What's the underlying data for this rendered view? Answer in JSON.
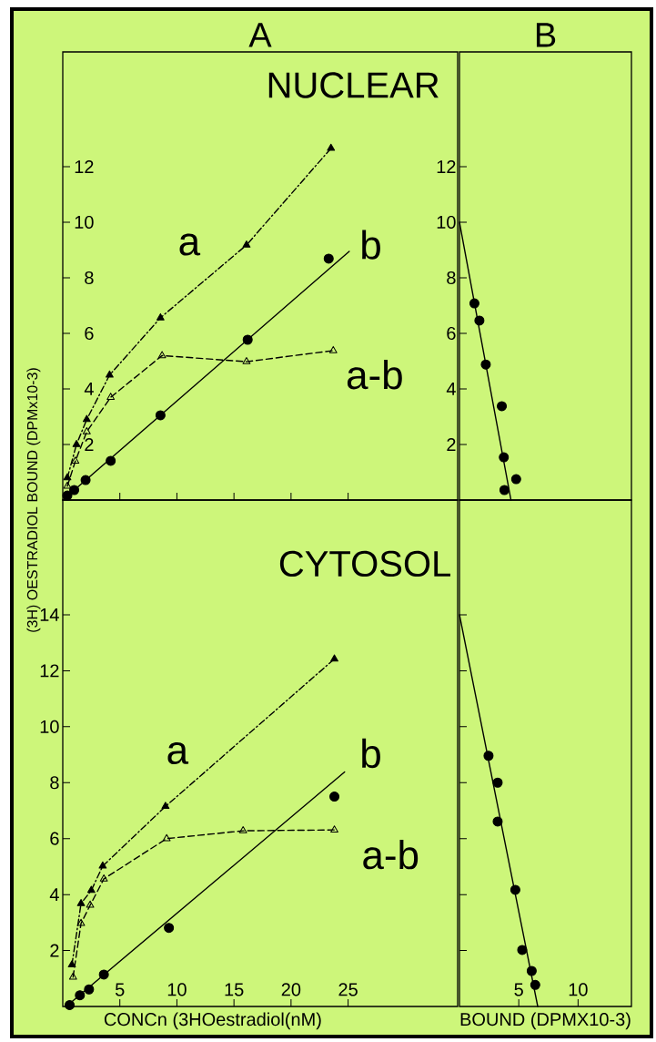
{
  "chart_data": [
    {
      "type": "scatter",
      "title": "A",
      "subtitle": "NUCLEAR",
      "xlim": [
        0,
        34.6
      ],
      "ylim": [
        0,
        16.13
      ],
      "xticks": [
        {
          "value": 5,
          "label": null
        },
        {
          "value": 10,
          "label": null
        },
        {
          "value": 15,
          "label": null
        },
        {
          "value": 20,
          "label": null
        },
        {
          "value": 25,
          "label": null
        }
      ],
      "yticks": [
        2,
        4,
        6,
        8,
        10,
        12
      ],
      "tick_labels": "y",
      "annotations": [
        "a",
        "b",
        "a-b"
      ],
      "series": [
        {
          "type": "line",
          "color": "#000000",
          "marker": "triangle",
          "line_style": "dashdotted",
          "x": [
            0.4,
            1.2,
            2.1,
            4.1,
            8.56,
            16.1,
            23.5
          ],
          "values": [
            0.8,
            2.0,
            2.9,
            4.5,
            6.56,
            9.18,
            12.66
          ]
        },
        {
          "type": "line",
          "color": "#000000",
          "marker": "triangle",
          "line_style": "dashed",
          "x": [
            0.4,
            1.1,
            2.1,
            4.2,
            8.7,
            16.1,
            23.7
          ],
          "values": [
            0.5,
            1.4,
            2.46,
            3.7,
            5.2,
            4.98,
            5.38
          ]
        },
        {
          "color": "#000000",
          "marker": "circle",
          "x": [
            0.4,
            1.0,
            2.0,
            4.2,
            8.56,
            16.2,
            23.3
          ],
          "values": [
            0.16,
            0.36,
            0.72,
            1.41,
            3.05,
            5.77,
            8.69
          ]
        },
        {
          "type": "line",
          "color": "#000000",
          "marker": "none",
          "line_style": "solid",
          "x": [
            0,
            25.1
          ],
          "values": [
            0,
            8.95
          ]
        }
      ]
    },
    {
      "type": "scatter",
      "title": "B",
      "xlim": [
        0,
        14.5
      ],
      "ylim": [
        0,
        16.13
      ],
      "yticks": [
        2,
        4,
        6,
        8,
        10,
        12
      ],
      "tick_labels": "y",
      "series": [
        {
          "color": "#000000",
          "marker": "circle",
          "x": [
            1.26,
            1.68,
            2.22,
            3.57,
            3.74,
            4.78,
            3.79
          ],
          "values": [
            7.08,
            6.46,
            4.88,
            3.38,
            1.54,
            0.75,
            0.36
          ]
        },
        {
          "type": "line",
          "color": "#000000",
          "marker": "none",
          "line_style": "solid",
          "x": [
            0,
            4.34
          ],
          "values": [
            10.0,
            0
          ]
        }
      ]
    },
    {
      "type": "scatter",
      "subtitle": "CYTOSOL",
      "xlabel": "CONCn (3HOestradiol(nM)",
      "ylabel": "(3H) OESTRADIOL BOUND (DPMx10-3)",
      "xlim": [
        0,
        34.6
      ],
      "ylim": [
        0,
        18.1
      ],
      "xticks": [
        5,
        10,
        15,
        20,
        25
      ],
      "yticks": [
        2,
        4,
        6,
        8,
        10,
        12,
        14
      ],
      "annotations": [
        "a",
        "b",
        "a-b"
      ],
      "series": [
        {
          "type": "line",
          "color": "#000000",
          "marker": "triangle",
          "line_style": "dashdotted",
          "x": [
            0.8,
            1.6,
            2.5,
            3.5,
            9.0,
            23.8
          ],
          "values": [
            1.49,
            3.68,
            4.15,
            5.02,
            7.15,
            12.42
          ]
        },
        {
          "type": "line",
          "color": "#000000",
          "marker": "triangle",
          "line_style": "dashed",
          "x": [
            0.9,
            1.6,
            2.4,
            3.6,
            9.1,
            15.8,
            23.8
          ],
          "values": [
            1.05,
            2.97,
            3.62,
            4.56,
            6.0,
            6.28,
            6.31
          ]
        },
        {
          "color": "#000000",
          "marker": "circle",
          "x": [
            0.6,
            1.5,
            2.3,
            3.6,
            9.3,
            23.8
          ],
          "values": [
            0.05,
            0.4,
            0.61,
            1.14,
            2.81,
            7.5
          ]
        },
        {
          "type": "line",
          "color": "#000000",
          "marker": "none",
          "line_style": "solid",
          "x": [
            0.3,
            24.7
          ],
          "values": [
            0,
            8.38
          ]
        }
      ]
    },
    {
      "type": "scatter",
      "xlabel": "BOUND (DPMX10-3)",
      "xlim": [
        0,
        14.5
      ],
      "ylim": [
        0,
        18.1
      ],
      "xticks": [
        5,
        10
      ],
      "tick_labels": "x",
      "yticks": [
        {
          "value": 2,
          "label": null
        },
        {
          "value": 4,
          "label": null
        },
        {
          "value": 6,
          "label": null
        },
        {
          "value": 8,
          "label": null
        },
        {
          "value": 10,
          "label": null
        },
        {
          "value": 12,
          "label": null
        },
        {
          "value": 14,
          "label": null
        }
      ],
      "series": [
        {
          "color": "#000000",
          "marker": "circle",
          "x": [
            2.45,
            3.22,
            3.22,
            4.71,
            5.29,
            6.09,
            6.39
          ],
          "values": [
            8.96,
            8.0,
            6.61,
            4.17,
            2.02,
            1.27,
            0.77
          ]
        },
        {
          "type": "line",
          "color": "#000000",
          "marker": "none",
          "line_style": "solid",
          "x": [
            0,
            6.6
          ],
          "values": [
            14,
            0
          ]
        }
      ]
    }
  ]
}
